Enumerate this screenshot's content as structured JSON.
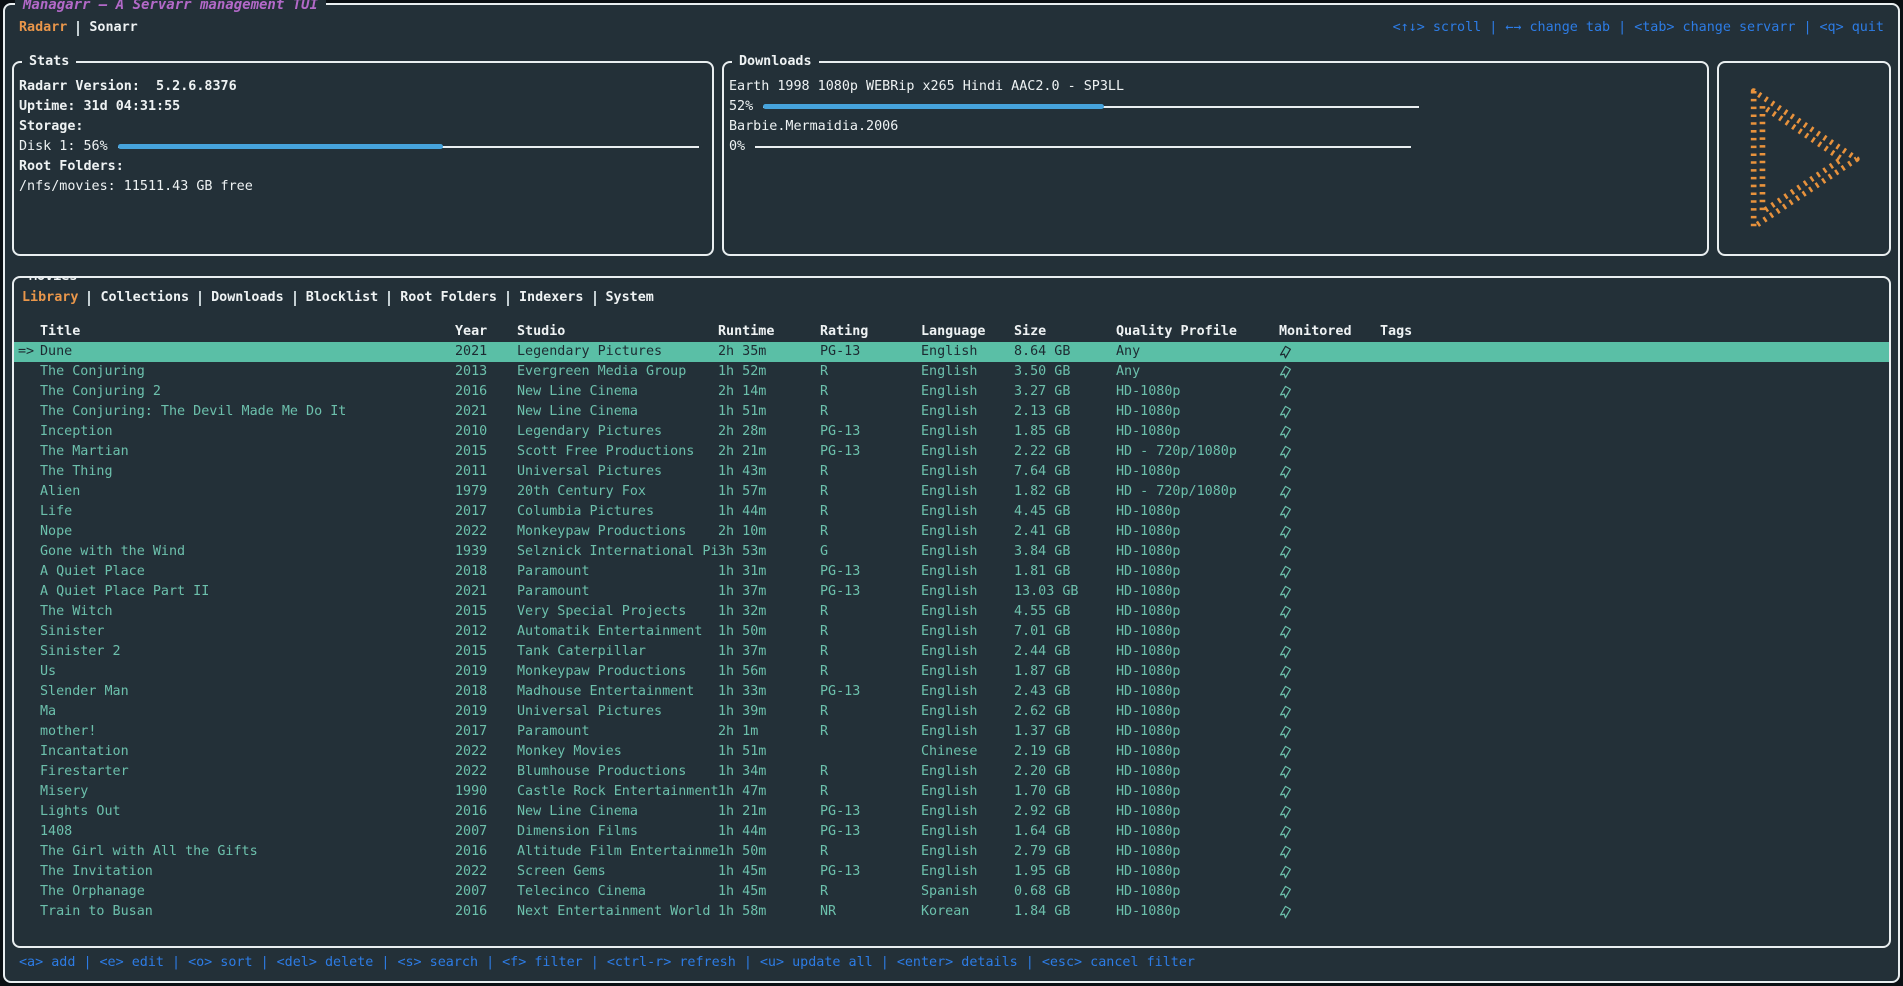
{
  "app": {
    "title": "Managarr – A Servarr management TUI",
    "servarr_tabs": [
      {
        "label": "Radarr",
        "active": true
      },
      {
        "label": "Sonarr",
        "active": false
      }
    ],
    "top_hints": [
      {
        "key": "<↑↓>",
        "label": "scroll"
      },
      {
        "key": "←→",
        "label": "change tab"
      },
      {
        "key": "<tab>",
        "label": "change servarr"
      },
      {
        "key": "<q>",
        "label": "quit"
      }
    ],
    "bottom_hints": [
      {
        "key": "<a>",
        "label": "add"
      },
      {
        "key": "<e>",
        "label": "edit"
      },
      {
        "key": "<o>",
        "label": "sort"
      },
      {
        "key": "<del>",
        "label": "delete"
      },
      {
        "key": "<s>",
        "label": "search"
      },
      {
        "key": "<f>",
        "label": "filter"
      },
      {
        "key": "<ctrl-r>",
        "label": "refresh"
      },
      {
        "key": "<u>",
        "label": "update all"
      },
      {
        "key": "<enter>",
        "label": "details"
      },
      {
        "key": "<esc>",
        "label": "cancel filter"
      }
    ]
  },
  "stats": {
    "title": "Stats",
    "lines": {
      "version": "Radarr Version:  5.2.6.8376",
      "uptime": "Uptime: 31d 04:31:55",
      "storage": "Storage:",
      "disk": "Disk 1: 56%",
      "root_folders": "Root Folders:",
      "root_folder_free": "/nfs/movies: 11511.43 GB free"
    },
    "disk_percent": 56
  },
  "downloads": {
    "title": "Downloads",
    "items": [
      {
        "name": "Earth 1998 1080p WEBRip x265 Hindi AAC2.0 - SP3LL",
        "percent_label": "52%",
        "percent": 52
      },
      {
        "name": "Barbie.Mermaidia.2006",
        "percent_label": "0%",
        "percent": 0
      }
    ]
  },
  "logo": {
    "icon": "play-triangle-dotted-logo",
    "color": "#e8923c"
  },
  "movies": {
    "title": "Movies",
    "tabs": [
      "Library",
      "Collections",
      "Downloads",
      "Blocklist",
      "Root Folders",
      "Indexers",
      "System"
    ],
    "active_tab": "Library",
    "columns": [
      "Title",
      "Year",
      "Studio",
      "Runtime",
      "Rating",
      "Language",
      "Size",
      "Quality Profile",
      "Monitored",
      "Tags"
    ],
    "selection_arrow": "=>",
    "selected_index": 0,
    "monitored_icon": "bookmark-icon",
    "rows": [
      {
        "title": "Dune",
        "year": "2021",
        "studio": "Legendary Pictures",
        "runtime": "2h 35m",
        "rating": "PG-13",
        "language": "English",
        "size": "8.64 GB",
        "quality": "Any",
        "monitored": true,
        "tags": ""
      },
      {
        "title": "The Conjuring",
        "year": "2013",
        "studio": "Evergreen Media Group",
        "runtime": "1h 52m",
        "rating": "R",
        "language": "English",
        "size": "3.50 GB",
        "quality": "Any",
        "monitored": true,
        "tags": ""
      },
      {
        "title": "The Conjuring 2",
        "year": "2016",
        "studio": "New Line Cinema",
        "runtime": "2h 14m",
        "rating": "R",
        "language": "English",
        "size": "3.27 GB",
        "quality": "HD-1080p",
        "monitored": true,
        "tags": ""
      },
      {
        "title": "The Conjuring: The Devil Made Me Do It",
        "year": "2021",
        "studio": "New Line Cinema",
        "runtime": "1h 51m",
        "rating": "R",
        "language": "English",
        "size": "2.13 GB",
        "quality": "HD-1080p",
        "monitored": true,
        "tags": ""
      },
      {
        "title": "Inception",
        "year": "2010",
        "studio": "Legendary Pictures",
        "runtime": "2h 28m",
        "rating": "PG-13",
        "language": "English",
        "size": "1.85 GB",
        "quality": "HD-1080p",
        "monitored": true,
        "tags": ""
      },
      {
        "title": "The Martian",
        "year": "2015",
        "studio": "Scott Free Productions",
        "runtime": "2h 21m",
        "rating": "PG-13",
        "language": "English",
        "size": "2.22 GB",
        "quality": "HD - 720p/1080p",
        "monitored": true,
        "tags": ""
      },
      {
        "title": "The Thing",
        "year": "2011",
        "studio": "Universal Pictures",
        "runtime": "1h 43m",
        "rating": "R",
        "language": "English",
        "size": "7.64 GB",
        "quality": "HD-1080p",
        "monitored": true,
        "tags": ""
      },
      {
        "title": "Alien",
        "year": "1979",
        "studio": "20th Century Fox",
        "runtime": "1h 57m",
        "rating": "R",
        "language": "English",
        "size": "1.82 GB",
        "quality": "HD - 720p/1080p",
        "monitored": true,
        "tags": ""
      },
      {
        "title": "Life",
        "year": "2017",
        "studio": "Columbia Pictures",
        "runtime": "1h 44m",
        "rating": "R",
        "language": "English",
        "size": "4.45 GB",
        "quality": "HD-1080p",
        "monitored": true,
        "tags": ""
      },
      {
        "title": "Nope",
        "year": "2022",
        "studio": "Monkeypaw Productions",
        "runtime": "2h 10m",
        "rating": "R",
        "language": "English",
        "size": "2.41 GB",
        "quality": "HD-1080p",
        "monitored": true,
        "tags": ""
      },
      {
        "title": "Gone with the Wind",
        "year": "1939",
        "studio": "Selznick International Pic",
        "runtime": "3h 53m",
        "rating": "G",
        "language": "English",
        "size": "3.84 GB",
        "quality": "HD-1080p",
        "monitored": true,
        "tags": ""
      },
      {
        "title": "A Quiet Place",
        "year": "2018",
        "studio": "Paramount",
        "runtime": "1h 31m",
        "rating": "PG-13",
        "language": "English",
        "size": "1.81 GB",
        "quality": "HD-1080p",
        "monitored": true,
        "tags": ""
      },
      {
        "title": "A Quiet Place Part II",
        "year": "2021",
        "studio": "Paramount",
        "runtime": "1h 37m",
        "rating": "PG-13",
        "language": "English",
        "size": "13.03 GB",
        "quality": "HD-1080p",
        "monitored": true,
        "tags": ""
      },
      {
        "title": "The Witch",
        "year": "2015",
        "studio": "Very Special Projects",
        "runtime": "1h 32m",
        "rating": "R",
        "language": "English",
        "size": "4.55 GB",
        "quality": "HD-1080p",
        "monitored": true,
        "tags": ""
      },
      {
        "title": "Sinister",
        "year": "2012",
        "studio": "Automatik Entertainment",
        "runtime": "1h 50m",
        "rating": "R",
        "language": "English",
        "size": "7.01 GB",
        "quality": "HD-1080p",
        "monitored": true,
        "tags": ""
      },
      {
        "title": "Sinister 2",
        "year": "2015",
        "studio": "Tank Caterpillar",
        "runtime": "1h 37m",
        "rating": "R",
        "language": "English",
        "size": "2.44 GB",
        "quality": "HD-1080p",
        "monitored": true,
        "tags": ""
      },
      {
        "title": "Us",
        "year": "2019",
        "studio": "Monkeypaw Productions",
        "runtime": "1h 56m",
        "rating": "R",
        "language": "English",
        "size": "1.87 GB",
        "quality": "HD-1080p",
        "monitored": true,
        "tags": ""
      },
      {
        "title": "Slender Man",
        "year": "2018",
        "studio": "Madhouse Entertainment",
        "runtime": "1h 33m",
        "rating": "PG-13",
        "language": "English",
        "size": "2.43 GB",
        "quality": "HD-1080p",
        "monitored": true,
        "tags": ""
      },
      {
        "title": "Ma",
        "year": "2019",
        "studio": "Universal Pictures",
        "runtime": "1h 39m",
        "rating": "R",
        "language": "English",
        "size": "2.62 GB",
        "quality": "HD-1080p",
        "monitored": true,
        "tags": ""
      },
      {
        "title": "mother!",
        "year": "2017",
        "studio": "Paramount",
        "runtime": "2h 1m",
        "rating": "R",
        "language": "English",
        "size": "1.37 GB",
        "quality": "HD-1080p",
        "monitored": true,
        "tags": ""
      },
      {
        "title": "Incantation",
        "year": "2022",
        "studio": "Monkey Movies",
        "runtime": "1h 51m",
        "rating": "",
        "language": "Chinese",
        "size": "2.19 GB",
        "quality": "HD-1080p",
        "monitored": true,
        "tags": ""
      },
      {
        "title": "Firestarter",
        "year": "2022",
        "studio": "Blumhouse Productions",
        "runtime": "1h 34m",
        "rating": "R",
        "language": "English",
        "size": "2.20 GB",
        "quality": "HD-1080p",
        "monitored": true,
        "tags": ""
      },
      {
        "title": "Misery",
        "year": "1990",
        "studio": "Castle Rock Entertainment",
        "runtime": "1h 47m",
        "rating": "R",
        "language": "English",
        "size": "1.70 GB",
        "quality": "HD-1080p",
        "monitored": true,
        "tags": ""
      },
      {
        "title": "Lights Out",
        "year": "2016",
        "studio": "New Line Cinema",
        "runtime": "1h 21m",
        "rating": "PG-13",
        "language": "English",
        "size": "2.92 GB",
        "quality": "HD-1080p",
        "monitored": true,
        "tags": ""
      },
      {
        "title": "1408",
        "year": "2007",
        "studio": "Dimension Films",
        "runtime": "1h 44m",
        "rating": "PG-13",
        "language": "English",
        "size": "1.64 GB",
        "quality": "HD-1080p",
        "monitored": true,
        "tags": ""
      },
      {
        "title": "The Girl with All the Gifts",
        "year": "2016",
        "studio": "Altitude Film Entertainmen",
        "runtime": "1h 50m",
        "rating": "R",
        "language": "English",
        "size": "2.79 GB",
        "quality": "HD-1080p",
        "monitored": true,
        "tags": ""
      },
      {
        "title": "The Invitation",
        "year": "2022",
        "studio": "Screen Gems",
        "runtime": "1h 45m",
        "rating": "PG-13",
        "language": "English",
        "size": "1.95 GB",
        "quality": "HD-1080p",
        "monitored": true,
        "tags": ""
      },
      {
        "title": "The Orphanage",
        "year": "2007",
        "studio": "Telecinco Cinema",
        "runtime": "1h 45m",
        "rating": "R",
        "language": "Spanish",
        "size": "0.68 GB",
        "quality": "HD-1080p",
        "monitored": true,
        "tags": ""
      },
      {
        "title": "Train to Busan",
        "year": "2016",
        "studio": "Next Entertainment World",
        "runtime": "1h 58m",
        "rating": "NR",
        "language": "Korean",
        "size": "1.84 GB",
        "quality": "HD-1080p",
        "monitored": true,
        "tags": ""
      }
    ]
  },
  "colors": {
    "background": "#233038",
    "accent_orange": "#e9964a",
    "title_purple": "#b269c8",
    "hint_blue": "#2d7ce5",
    "table_teal": "#6cc0ac",
    "selected_row_bg": "#5abfa6",
    "gauge_blue": "#46a3dc",
    "logo_orange": "#e8923c",
    "border_white": "#e9eef0"
  }
}
